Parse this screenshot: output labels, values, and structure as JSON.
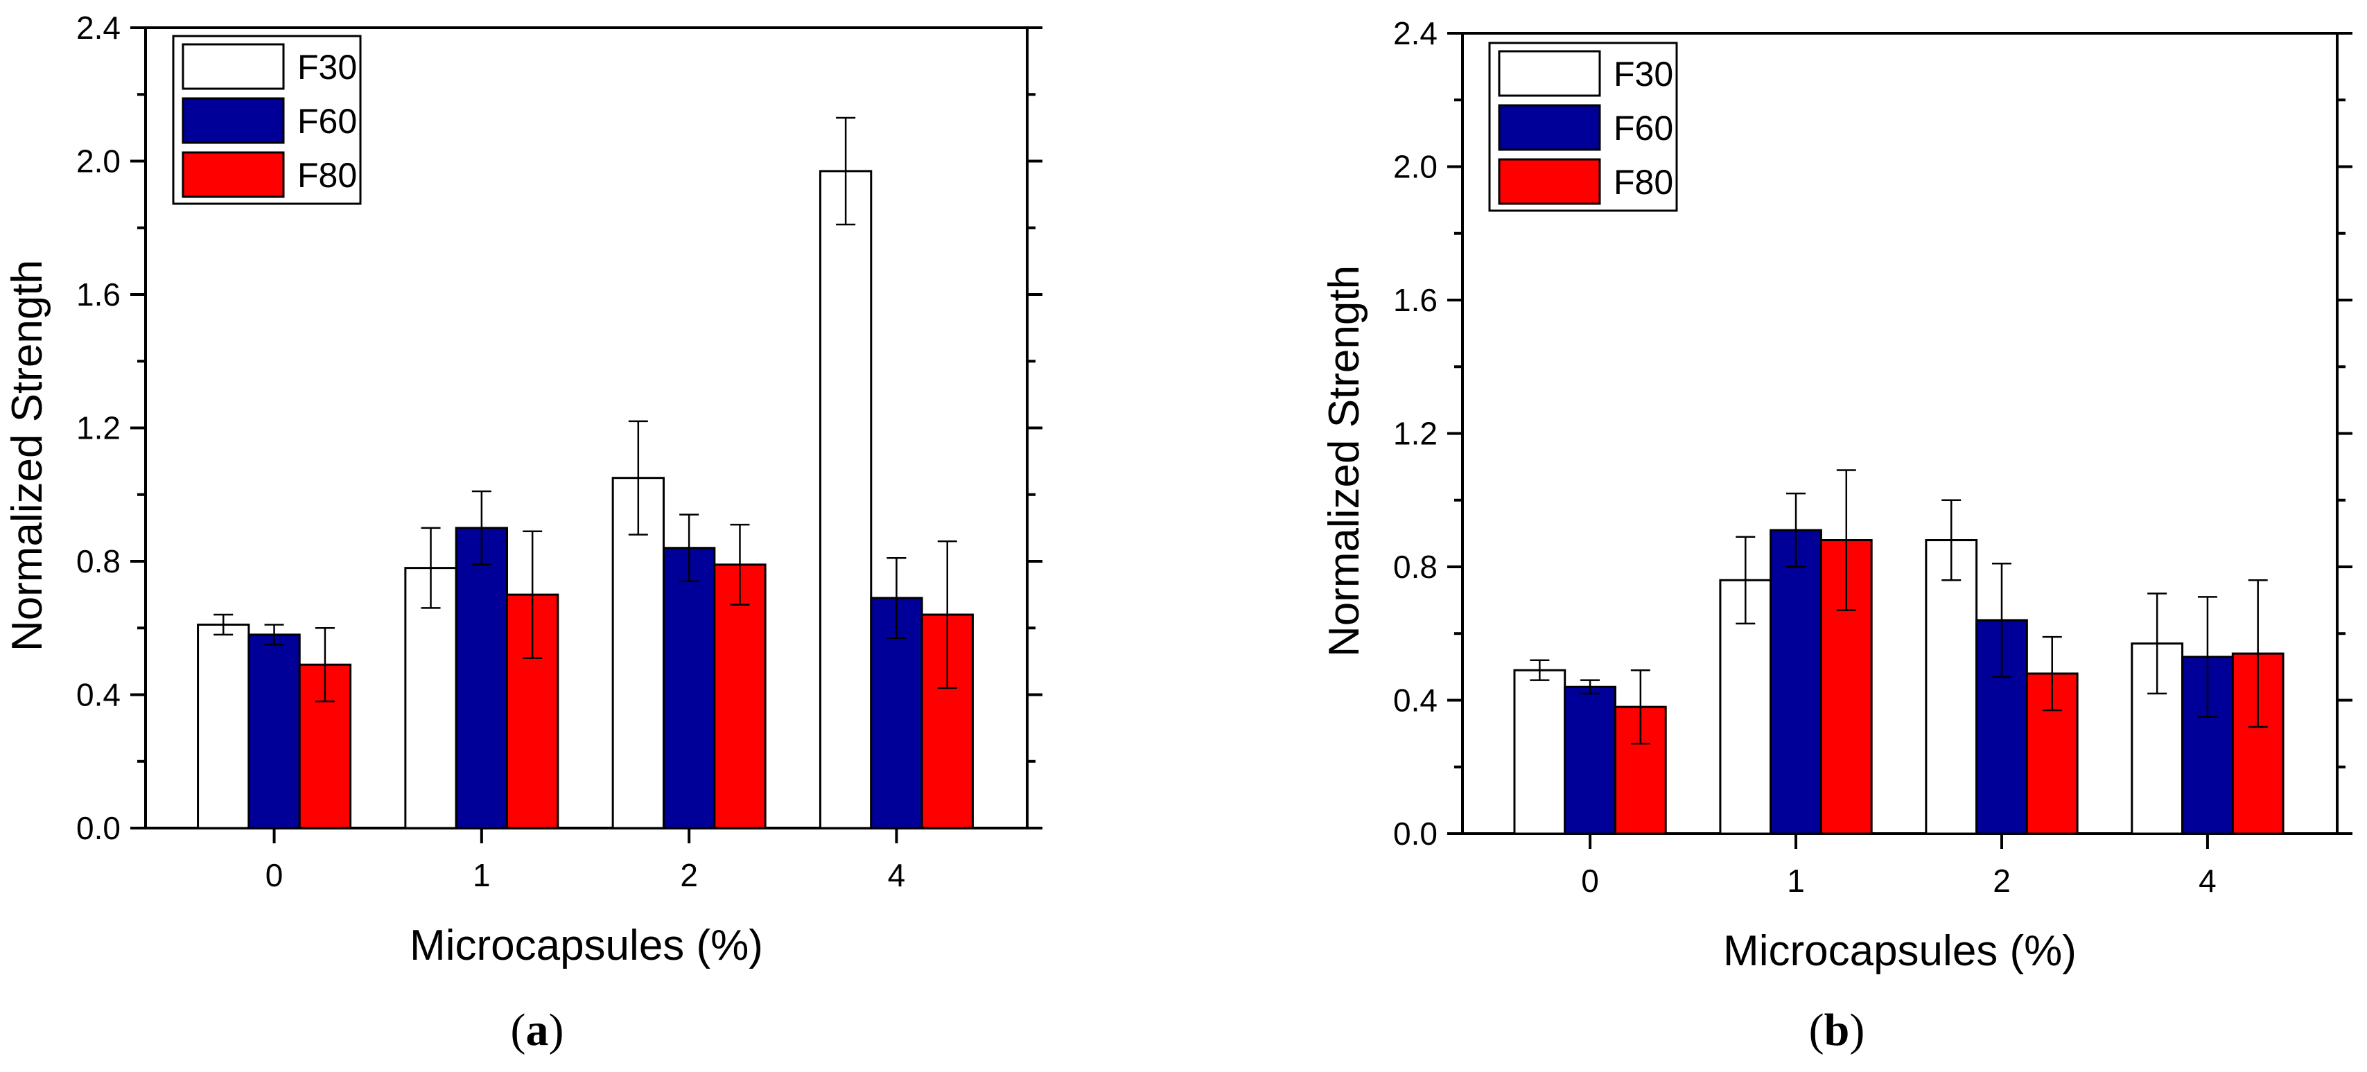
{
  "colors": {
    "F30": "#ffffff",
    "F60": "#000099",
    "F80": "#ff0000",
    "axis": "#000000"
  },
  "chart_data": [
    {
      "id": "a",
      "panel_label": "(a)",
      "type": "bar",
      "xlabel": "Microcapsules (%)",
      "ylabel": "Normalized Strength",
      "ylim": [
        0,
        2.4
      ],
      "yticks": [
        "0.0",
        "0.4",
        "0.8",
        "1.2",
        "1.6",
        "2.0",
        "2.4"
      ],
      "categories": [
        "0",
        "1",
        "2",
        "4"
      ],
      "legend_position": "top-left",
      "series": [
        {
          "name": "F30",
          "values": [
            0.61,
            0.78,
            1.05,
            1.97
          ],
          "errors": [
            0.03,
            0.12,
            0.17,
            0.16
          ]
        },
        {
          "name": "F60",
          "values": [
            0.58,
            0.9,
            0.84,
            0.69
          ],
          "errors": [
            0.03,
            0.11,
            0.1,
            0.12
          ]
        },
        {
          "name": "F80",
          "values": [
            0.49,
            0.7,
            0.79,
            0.64
          ],
          "errors": [
            0.11,
            0.19,
            0.12,
            0.22
          ]
        }
      ]
    },
    {
      "id": "b",
      "panel_label": "(b)",
      "type": "bar",
      "xlabel": "Microcapsules (%)",
      "ylabel": "Normalized Strength",
      "ylim": [
        0,
        2.4
      ],
      "yticks": [
        "0.0",
        "0.4",
        "0.8",
        "1.2",
        "1.6",
        "2.0",
        "2.4"
      ],
      "categories": [
        "0",
        "1",
        "2",
        "4"
      ],
      "legend_position": "top-left",
      "series": [
        {
          "name": "F30",
          "values": [
            0.49,
            0.76,
            0.88,
            0.57
          ],
          "errors": [
            0.03,
            0.13,
            0.12,
            0.15
          ]
        },
        {
          "name": "F60",
          "values": [
            0.44,
            0.91,
            0.64,
            0.53
          ],
          "errors": [
            0.02,
            0.11,
            0.17,
            0.18
          ]
        },
        {
          "name": "F80",
          "values": [
            0.38,
            0.88,
            0.48,
            0.54
          ],
          "errors": [
            0.11,
            0.21,
            0.11,
            0.22
          ]
        }
      ]
    }
  ]
}
